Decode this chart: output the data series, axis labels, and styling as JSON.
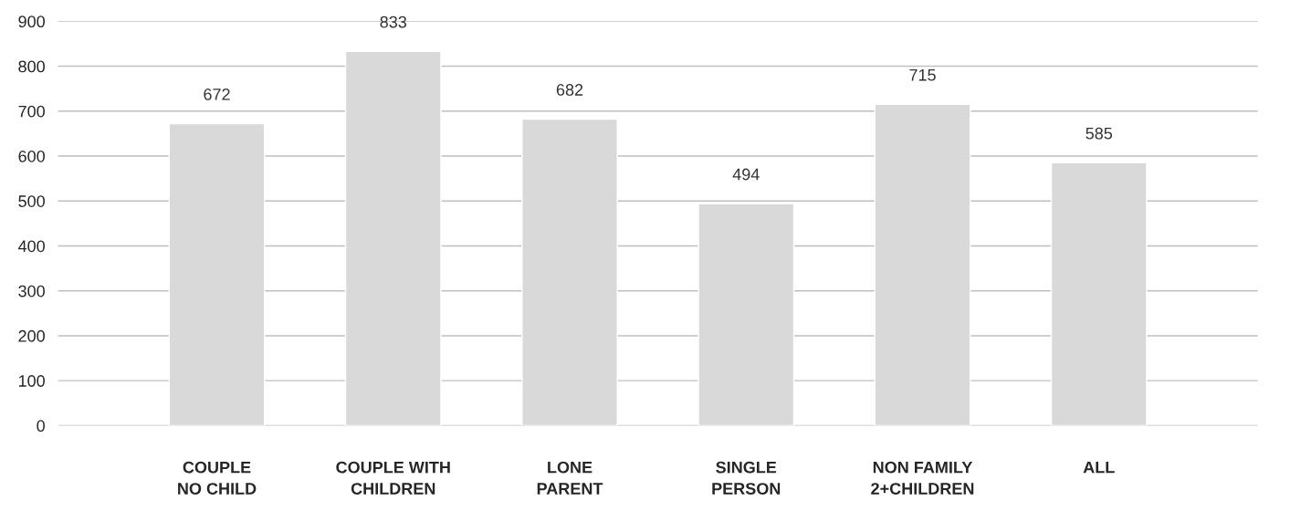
{
  "chart_data": {
    "type": "bar",
    "categories": [
      "COUPLE\nNO CHILD",
      "COUPLE WITH\nCHILDREN",
      "LONE\nPARENT",
      "SINGLE\nPERSON",
      "NON FAMILY\n2+CHILDREN",
      "ALL"
    ],
    "values": [
      672,
      833,
      682,
      494,
      715,
      585
    ],
    "color": "#d9d9d9",
    "ylim": [
      0,
      900
    ],
    "yticks": [
      0,
      100,
      200,
      300,
      400,
      500,
      600,
      700,
      800,
      900
    ],
    "grid": "y",
    "data_labels": true,
    "legend": false
  }
}
